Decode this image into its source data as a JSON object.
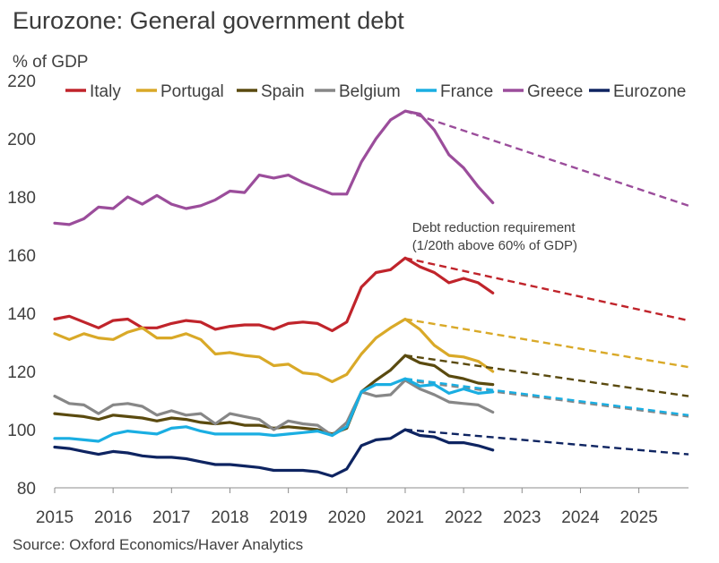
{
  "title": "Eurozone: General government debt",
  "source": "Source: Oxford Economics/Haver Analytics",
  "chart_data": {
    "type": "line",
    "ylabel": "% of GDP",
    "ylim": [
      80,
      220
    ],
    "yticks": [
      80,
      100,
      120,
      140,
      160,
      180,
      200,
      220
    ],
    "xlim": [
      2015,
      2025.85
    ],
    "xticks": [
      2015,
      2016,
      2017,
      2018,
      2019,
      2020,
      2021,
      2022,
      2023,
      2024,
      2025
    ],
    "legend_position": "top",
    "annotation": {
      "line1": "Debt reduction requirement",
      "line2": "(1/20th above 60% of GDP)",
      "anchor_x": 2021.12,
      "anchor_y": 166.5
    },
    "x": [
      2015.0,
      2015.25,
      2015.5,
      2015.75,
      2016.0,
      2016.25,
      2016.5,
      2016.75,
      2017.0,
      2017.25,
      2017.5,
      2017.75,
      2018.0,
      2018.25,
      2018.5,
      2018.75,
      2019.0,
      2019.25,
      2019.5,
      2019.75,
      2020.0,
      2020.25,
      2020.5,
      2020.75,
      2021.0,
      2021.25,
      2021.5,
      2021.75,
      2022.0,
      2022.25,
      2022.5
    ],
    "series": [
      {
        "name": "Italy",
        "color": "#c0242b",
        "values": [
          138,
          139,
          137,
          135,
          137.5,
          138,
          135,
          135,
          136.5,
          137.5,
          137,
          134.5,
          135.5,
          136,
          136,
          134.5,
          136.5,
          137,
          136.5,
          134,
          137,
          149,
          154,
          155,
          159,
          156,
          154,
          150.5,
          152,
          150.5,
          147
        ],
        "projection": {
          "x": [
            2021.0,
            2025.85
          ],
          "values": [
            159,
            137.5
          ]
        }
      },
      {
        "name": "Portugal",
        "color": "#d9a928",
        "values": [
          133,
          131,
          133,
          131.5,
          131,
          133.5,
          135,
          131.5,
          131.5,
          133,
          131,
          126,
          126.5,
          125.5,
          125,
          122,
          122.5,
          119.5,
          119,
          116.5,
          119,
          126,
          131.5,
          135,
          138,
          134.5,
          129,
          125.5,
          125,
          123.5,
          120
        ],
        "projection": {
          "x": [
            2021.0,
            2025.85
          ],
          "values": [
            138,
            121.5
          ]
        }
      },
      {
        "name": "Spain",
        "color": "#5a4a0f",
        "values": [
          105.5,
          105,
          104.5,
          103.5,
          105,
          104.5,
          104,
          103,
          104,
          103.5,
          102.5,
          102,
          102.5,
          101.5,
          101.5,
          100.5,
          101,
          100.5,
          100,
          98.5,
          100.5,
          113,
          117,
          120.5,
          125.5,
          123,
          122,
          118.5,
          117.5,
          116,
          115.5
        ],
        "projection": {
          "x": [
            2021.0,
            2025.85
          ],
          "values": [
            125.5,
            111.5
          ]
        }
      },
      {
        "name": "Belgium",
        "color": "#878787",
        "values": [
          111.5,
          109,
          108.5,
          105.5,
          108.5,
          109,
          108,
          105,
          106.5,
          105,
          105.5,
          102,
          105.5,
          104.5,
          103.5,
          100,
          103,
          102,
          101.5,
          98,
          102.5,
          113,
          111.5,
          112,
          117,
          114,
          112,
          109.5,
          109,
          108.5,
          106
        ],
        "projection": {
          "x": [
            2021.0,
            2025.85
          ],
          "values": [
            117,
            104.5
          ]
        }
      },
      {
        "name": "France",
        "color": "#1aaee2",
        "values": [
          97,
          97,
          96.5,
          96,
          98.5,
          99.5,
          99,
          98.5,
          100.5,
          101,
          99.5,
          98.5,
          98.5,
          98.5,
          98.5,
          98,
          98.5,
          99,
          99.5,
          98,
          101,
          113,
          115.5,
          115.5,
          117.5,
          115,
          115.5,
          112.5,
          114,
          112.5,
          113
        ],
        "projection": {
          "x": [
            2021.0,
            2025.85
          ],
          "values": [
            117.5,
            105
          ]
        }
      },
      {
        "name": "Greece",
        "color": "#9b4d9b",
        "values": [
          171,
          170.5,
          172.5,
          176.5,
          176,
          180,
          177.5,
          180.5,
          177.5,
          176,
          177,
          179,
          182,
          181.5,
          187.5,
          186.5,
          187.5,
          185,
          183,
          181,
          181,
          192,
          200,
          206.5,
          209.5,
          208.5,
          203,
          194.5,
          190,
          183.5,
          178
        ],
        "projection": {
          "x": [
            2021.0,
            2025.85
          ],
          "values": [
            209.5,
            177
          ]
        }
      },
      {
        "name": "Eurozone",
        "color": "#0e2461",
        "values": [
          94,
          93.5,
          92.5,
          91.5,
          92.5,
          92,
          91,
          90.5,
          90.5,
          90,
          89,
          88,
          88,
          87.5,
          87,
          86,
          86,
          86,
          85.5,
          84,
          86.5,
          94.5,
          96.5,
          97,
          100,
          98,
          97.5,
          95.5,
          95.5,
          94.5,
          93
        ],
        "projection": {
          "x": [
            2021.0,
            2025.85
          ],
          "values": [
            100,
            91.5
          ]
        }
      }
    ]
  }
}
